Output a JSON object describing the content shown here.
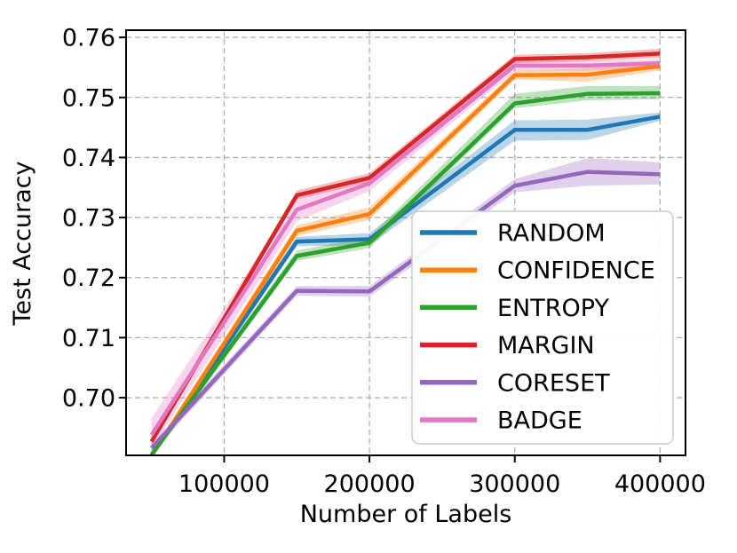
{
  "figure": {
    "background": "#ffffff"
  },
  "chart_data": {
    "type": "line",
    "title": "",
    "xlabel": "Number of Labels",
    "ylabel": "Test Accuracy",
    "x": [
      50000,
      150000,
      200000,
      300000,
      350000,
      400000
    ],
    "xlim": [
      32500,
      417500
    ],
    "ylim": [
      0.6904,
      0.7612
    ],
    "xticks": {
      "values": [
        100000,
        200000,
        300000,
        400000
      ],
      "labels": [
        "100000",
        "200000",
        "300000",
        "400000"
      ]
    },
    "yticks": {
      "values": [
        0.7,
        0.71,
        0.72,
        0.73,
        0.74,
        0.75,
        0.76
      ],
      "labels": [
        "0.70",
        "0.71",
        "0.72",
        "0.73",
        "0.74",
        "0.75",
        "0.76"
      ]
    },
    "grid": true,
    "grid_color": "#b0b0b0",
    "grid_dash": "6.5 3.5",
    "band_opacity": 0.3,
    "legend_position": "lower-right-inside",
    "series": [
      {
        "name": "RANDOM",
        "color": "#1f77b4",
        "values": [
          0.6905,
          0.726,
          0.7264,
          0.7446,
          0.7446,
          0.7468
        ],
        "band_lo": [
          0.6899,
          0.7252,
          0.7254,
          0.7428,
          0.7429,
          0.7461
        ],
        "band_hi": [
          0.6911,
          0.7268,
          0.7274,
          0.7462,
          0.7463,
          0.7475
        ]
      },
      {
        "name": "CONFIDENCE",
        "color": "#ff7f0e",
        "values": [
          0.6903,
          0.7278,
          0.7306,
          0.7537,
          0.7538,
          0.7552
        ],
        "band_lo": [
          0.6897,
          0.7269,
          0.7296,
          0.753,
          0.7526,
          0.7545
        ],
        "band_hi": [
          0.6909,
          0.7287,
          0.7317,
          0.7544,
          0.7548,
          0.7559
        ]
      },
      {
        "name": "ENTROPY",
        "color": "#2ca02c",
        "values": [
          0.6905,
          0.7236,
          0.7258,
          0.749,
          0.7506,
          0.7507
        ],
        "band_lo": [
          0.6899,
          0.7228,
          0.7249,
          0.7482,
          0.7495,
          0.7497
        ],
        "band_hi": [
          0.6911,
          0.7245,
          0.7268,
          0.7506,
          0.7519,
          0.7519
        ]
      },
      {
        "name": "MARGIN",
        "color": "#d62728",
        "values": [
          0.6927,
          0.7337,
          0.7366,
          0.7564,
          0.7567,
          0.7573
        ],
        "band_lo": [
          0.692,
          0.733,
          0.7359,
          0.7557,
          0.756,
          0.7566
        ],
        "band_hi": [
          0.6934,
          0.7345,
          0.7374,
          0.7571,
          0.7574,
          0.7581
        ]
      },
      {
        "name": "CORESET",
        "color": "#9467bd",
        "values": [
          0.6916,
          0.7178,
          0.7177,
          0.7353,
          0.7376,
          0.7372
        ],
        "band_lo": [
          0.6908,
          0.717,
          0.7168,
          0.7342,
          0.7353,
          0.7355
        ],
        "band_hi": [
          0.6924,
          0.7186,
          0.7186,
          0.7364,
          0.7399,
          0.7392
        ]
      },
      {
        "name": "BADGE",
        "color": "#e377c2",
        "values": [
          0.6938,
          0.7313,
          0.7357,
          0.7553,
          0.7553,
          0.7557
        ],
        "band_lo": [
          0.6914,
          0.7294,
          0.7344,
          0.7544,
          0.7545,
          0.7549
        ],
        "band_hi": [
          0.6966,
          0.7333,
          0.7371,
          0.7562,
          0.7561,
          0.7563
        ]
      }
    ]
  }
}
